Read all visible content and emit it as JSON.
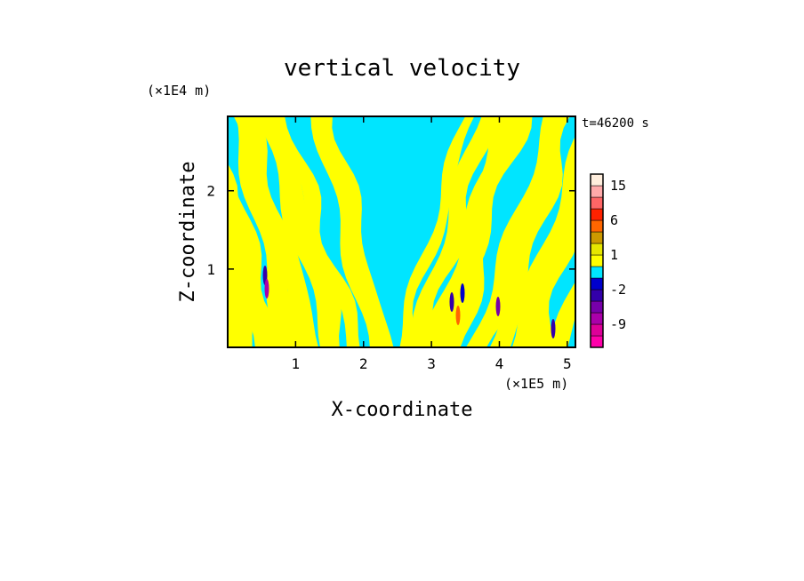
{
  "chart_data": {
    "type": "heatmap",
    "title": "vertical velocity",
    "xlabel": "X-coordinate",
    "ylabel": "Z-coordinate",
    "x_units": "(×1E5 m)",
    "y_units": "(×1E4 m)",
    "time_label": "t=46200 s",
    "xlim": [
      0,
      5.12
    ],
    "ylim": [
      0,
      2.95
    ],
    "x_ticks": [
      1,
      2,
      3,
      4,
      5
    ],
    "y_ticks": [
      1,
      2
    ],
    "grid": false,
    "colorbar": {
      "levels": [
        -12,
        -9,
        -6,
        -4,
        -2,
        -1,
        0,
        1,
        2,
        4,
        6,
        9,
        12,
        15,
        20
      ],
      "colors": [
        "#ff00aa",
        "#dd0099",
        "#aa00aa",
        "#7700aa",
        "#3300aa",
        "#0000cc",
        "#00e5ff",
        "#ffff00",
        "#e6e600",
        "#cc9900",
        "#ff6600",
        "#ff2200",
        "#ff6666",
        "#ffaaaa",
        "#ffeedd"
      ],
      "labels": [
        "15",
        "6",
        "1",
        "-2",
        "-9"
      ],
      "label_values": [
        15,
        6,
        1,
        -2,
        -9
      ]
    },
    "field_description_colors": {
      "background_positive": "#ffff00",
      "background_negative": "#00e5ff"
    }
  }
}
